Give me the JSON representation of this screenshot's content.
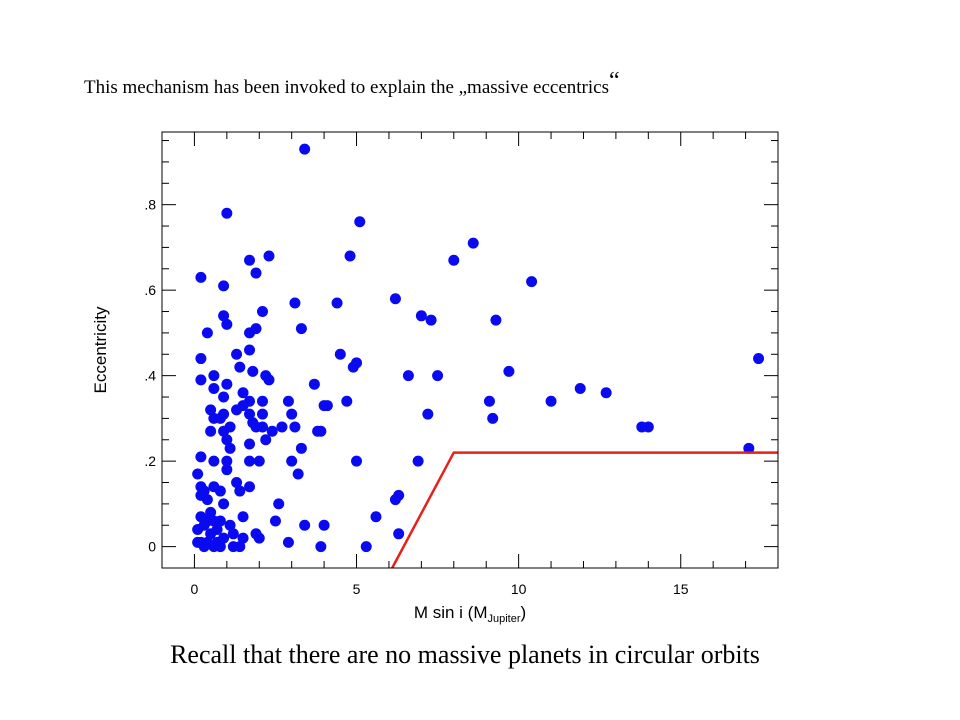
{
  "slide": {
    "title": "This mechanism has been invoked to explain the „massive eccentrics",
    "title_closing_quote": "“",
    "caption": "Recall that there are no massive planets in circular orbits"
  },
  "colors": {
    "points": "#0a0af0",
    "boundary": "#e8201a",
    "axes": "#000000"
  },
  "chart_data": {
    "type": "scatter",
    "xlabel": "M sin i (M",
    "xlabel_subscript": "Jupiter",
    "xlabel_close": ")",
    "ylabel": "Eccentricity",
    "xlim": [
      -1,
      18
    ],
    "ylim": [
      -0.05,
      0.97
    ],
    "x_ticks": [
      0,
      5,
      10,
      15
    ],
    "x_tick_labels": [
      "0",
      "5",
      "10",
      "15"
    ],
    "y_ticks": [
      0,
      0.2,
      0.4,
      0.6,
      0.8
    ],
    "y_tick_labels": [
      "0",
      ".2",
      ".4",
      ".6",
      ".8"
    ],
    "x_minor_step": 1,
    "y_minor_step": 0.05,
    "grid": false,
    "series": [
      {
        "marker": "filled-circle",
        "points": [
          [
            3.4,
            0.93
          ],
          [
            1.0,
            0.78
          ],
          [
            5.1,
            0.76
          ],
          [
            8.6,
            0.71
          ],
          [
            4.8,
            0.68
          ],
          [
            2.3,
            0.68
          ],
          [
            1.7,
            0.67
          ],
          [
            8.0,
            0.67
          ],
          [
            1.9,
            0.64
          ],
          [
            0.2,
            0.63
          ],
          [
            10.4,
            0.62
          ],
          [
            0.9,
            0.61
          ],
          [
            6.2,
            0.58
          ],
          [
            3.1,
            0.57
          ],
          [
            4.4,
            0.57
          ],
          [
            2.1,
            0.55
          ],
          [
            0.9,
            0.54
          ],
          [
            7.0,
            0.54
          ],
          [
            7.3,
            0.53
          ],
          [
            9.3,
            0.53
          ],
          [
            1.0,
            0.52
          ],
          [
            3.3,
            0.51
          ],
          [
            1.9,
            0.51
          ],
          [
            0.4,
            0.5
          ],
          [
            1.7,
            0.5
          ],
          [
            1.7,
            0.46
          ],
          [
            1.3,
            0.45
          ],
          [
            4.5,
            0.45
          ],
          [
            0.2,
            0.44
          ],
          [
            17.4,
            0.44
          ],
          [
            5.0,
            0.43
          ],
          [
            1.4,
            0.42
          ],
          [
            4.9,
            0.42
          ],
          [
            9.7,
            0.41
          ],
          [
            1.8,
            0.41
          ],
          [
            0.6,
            0.4
          ],
          [
            2.2,
            0.4
          ],
          [
            6.6,
            0.4
          ],
          [
            7.5,
            0.4
          ],
          [
            0.2,
            0.39
          ],
          [
            2.3,
            0.39
          ],
          [
            1.0,
            0.38
          ],
          [
            3.7,
            0.38
          ],
          [
            0.6,
            0.37
          ],
          [
            11.9,
            0.37
          ],
          [
            12.7,
            0.36
          ],
          [
            1.5,
            0.36
          ],
          [
            0.9,
            0.35
          ],
          [
            1.7,
            0.34
          ],
          [
            4.7,
            0.34
          ],
          [
            9.1,
            0.34
          ],
          [
            11.0,
            0.34
          ],
          [
            2.1,
            0.34
          ],
          [
            2.9,
            0.34
          ],
          [
            1.5,
            0.33
          ],
          [
            4.0,
            0.33
          ],
          [
            4.1,
            0.33
          ],
          [
            0.5,
            0.32
          ],
          [
            1.3,
            0.32
          ],
          [
            0.9,
            0.31
          ],
          [
            1.7,
            0.31
          ],
          [
            2.1,
            0.31
          ],
          [
            3.0,
            0.31
          ],
          [
            7.2,
            0.31
          ],
          [
            0.6,
            0.3
          ],
          [
            0.8,
            0.3
          ],
          [
            9.2,
            0.3
          ],
          [
            1.8,
            0.29
          ],
          [
            1.1,
            0.28
          ],
          [
            2.1,
            0.28
          ],
          [
            2.7,
            0.28
          ],
          [
            3.1,
            0.28
          ],
          [
            1.9,
            0.28
          ],
          [
            13.8,
            0.28
          ],
          [
            14.0,
            0.28
          ],
          [
            0.5,
            0.27
          ],
          [
            0.9,
            0.27
          ],
          [
            2.4,
            0.27
          ],
          [
            3.8,
            0.27
          ],
          [
            3.9,
            0.27
          ],
          [
            1.0,
            0.25
          ],
          [
            2.2,
            0.25
          ],
          [
            1.7,
            0.24
          ],
          [
            1.1,
            0.23
          ],
          [
            3.3,
            0.23
          ],
          [
            17.1,
            0.23
          ],
          [
            0.2,
            0.21
          ],
          [
            0.6,
            0.2
          ],
          [
            1.0,
            0.2
          ],
          [
            1.7,
            0.2
          ],
          [
            2.0,
            0.2
          ],
          [
            3.0,
            0.2
          ],
          [
            5.0,
            0.2
          ],
          [
            6.9,
            0.2
          ],
          [
            1.0,
            0.18
          ],
          [
            3.2,
            0.17
          ],
          [
            0.1,
            0.17
          ],
          [
            1.3,
            0.15
          ],
          [
            0.2,
            0.14
          ],
          [
            1.7,
            0.14
          ],
          [
            0.6,
            0.14
          ],
          [
            0.3,
            0.13
          ],
          [
            0.8,
            0.13
          ],
          [
            1.4,
            0.13
          ],
          [
            0.2,
            0.12
          ],
          [
            0.4,
            0.11
          ],
          [
            6.3,
            0.12
          ],
          [
            6.2,
            0.11
          ],
          [
            0.9,
            0.1
          ],
          [
            2.6,
            0.1
          ],
          [
            0.5,
            0.08
          ],
          [
            1.5,
            0.07
          ],
          [
            5.6,
            0.07
          ],
          [
            0.2,
            0.07
          ],
          [
            0.4,
            0.06
          ],
          [
            0.6,
            0.06
          ],
          [
            0.8,
            0.06
          ],
          [
            2.5,
            0.06
          ],
          [
            1.1,
            0.05
          ],
          [
            3.4,
            0.05
          ],
          [
            4.0,
            0.05
          ],
          [
            0.3,
            0.05
          ],
          [
            0.7,
            0.04
          ],
          [
            0.1,
            0.04
          ],
          [
            0.5,
            0.03
          ],
          [
            1.2,
            0.03
          ],
          [
            6.3,
            0.03
          ],
          [
            1.9,
            0.03
          ],
          [
            2.0,
            0.02
          ],
          [
            0.9,
            0.02
          ],
          [
            1.5,
            0.02
          ],
          [
            0.1,
            0.01
          ],
          [
            0.2,
            0.01
          ],
          [
            0.4,
            0.01
          ],
          [
            0.7,
            0.01
          ],
          [
            2.9,
            0.01
          ],
          [
            0.3,
            0.0
          ],
          [
            0.6,
            0.0
          ],
          [
            0.8,
            0.0
          ],
          [
            1.2,
            0.0
          ],
          [
            1.4,
            0.0
          ],
          [
            3.9,
            0.0
          ],
          [
            5.3,
            0.0
          ]
        ]
      }
    ],
    "boundary_line": [
      [
        6.1,
        -0.05
      ],
      [
        8.0,
        0.22
      ],
      [
        18.0,
        0.22
      ]
    ]
  }
}
